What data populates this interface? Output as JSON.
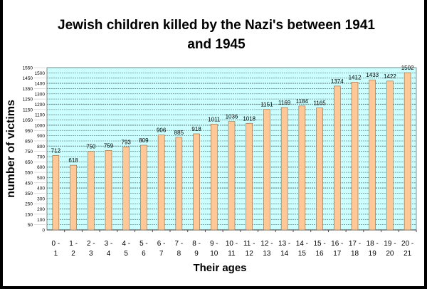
{
  "chart_data": {
    "type": "bar",
    "title": "Jewish children killed by the Nazi's between 1941 and 1945",
    "title_lines": [
      "Jewish children killed by the Nazi's between 1941",
      "and 1945"
    ],
    "xlabel": "Their ages",
    "ylabel": "number of victims",
    "ylim": [
      0,
      1550
    ],
    "ytick_step": 50,
    "grid": true,
    "categories": [
      [
        "0 -",
        "1"
      ],
      [
        "1 -",
        "2"
      ],
      [
        "2 -",
        "3"
      ],
      [
        "3 -",
        "4"
      ],
      [
        "4 -",
        "5"
      ],
      [
        "5 -",
        "6"
      ],
      [
        "6 -",
        "7"
      ],
      [
        "7 -",
        "8"
      ],
      [
        "8 -",
        "9"
      ],
      [
        "9 -",
        "10"
      ],
      [
        "10 -",
        "11"
      ],
      [
        "11 -",
        "12"
      ],
      [
        "12 -",
        "13"
      ],
      [
        "13 -",
        "14"
      ],
      [
        "14 -",
        "15"
      ],
      [
        "15 -",
        "16"
      ],
      [
        "16 -",
        "17"
      ],
      [
        "17 -",
        "18"
      ],
      [
        "18 -",
        "19"
      ],
      [
        "19 -",
        "20"
      ],
      [
        "20 -",
        "21"
      ]
    ],
    "values": [
      712,
      618,
      750,
      759,
      793,
      809,
      906,
      885,
      918,
      1011,
      1036,
      1018,
      1151,
      1169,
      1184,
      1165,
      1374,
      1412,
      1433,
      1422,
      1502
    ],
    "colors": {
      "bar": "#FFC896",
      "bar_edge": "#8a6a4a",
      "plot_bg": "#CCFFFF",
      "grid": "#6a8a8a"
    }
  }
}
